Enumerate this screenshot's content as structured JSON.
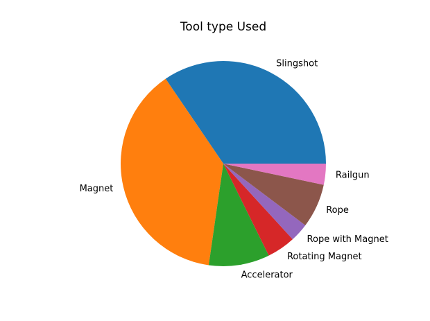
{
  "chart_data": {
    "type": "pie",
    "title": "Tool type Used",
    "start_angle_deg": 0,
    "direction": "counterclockwise",
    "slices": [
      {
        "label": "Slingshot",
        "value": 35.3,
        "color": "#1f77b4"
      },
      {
        "label": "Magnet",
        "value": 39.1,
        "color": "#ff7f0e"
      },
      {
        "label": "Accelerator",
        "value": 9.8,
        "color": "#2ca02c"
      },
      {
        "label": "Rotating Magnet",
        "value": 4.6,
        "color": "#d62728"
      },
      {
        "label": "Rope with Magnet",
        "value": 3.0,
        "color": "#9467bd"
      },
      {
        "label": "Rope",
        "value": 7.1,
        "color": "#8c564b"
      },
      {
        "label": "Railgun",
        "value": 3.4,
        "color": "#e377c2"
      }
    ]
  }
}
